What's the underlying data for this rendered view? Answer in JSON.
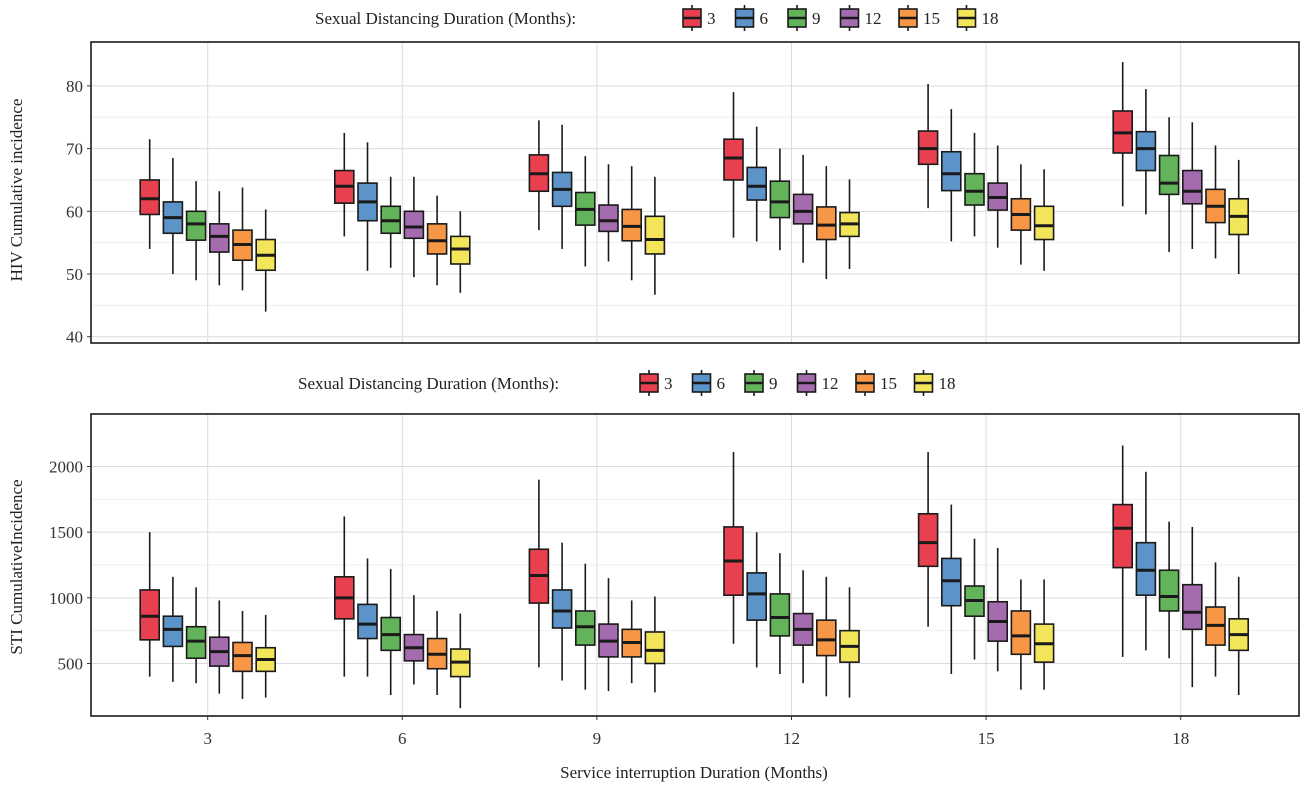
{
  "chart_data": [
    {
      "type": "box",
      "legend": {
        "title": "Sexual Distancing Duration (Months):",
        "placement": "top",
        "entries": [
          "3",
          "6",
          "9",
          "12",
          "15",
          "18"
        ]
      },
      "ylabel": "HIV Cumulative incidence",
      "xlabel": "",
      "ylim": [
        39,
        87
      ],
      "yticks": [
        40,
        50,
        60,
        70,
        80
      ],
      "grid": true,
      "categories": [
        "3",
        "6",
        "9",
        "12",
        "15",
        "18"
      ],
      "series": [
        {
          "name": "3",
          "color": "#e8404f",
          "boxes": [
            [
              54,
              59.5,
              62,
              65,
              71.5
            ],
            [
              56,
              61.3,
              64,
              66.5,
              72.5
            ],
            [
              57,
              63.2,
              66,
              69,
              74.5
            ],
            [
              55.8,
              65,
              68.5,
              71.5,
              79
            ],
            [
              60.5,
              67.5,
              70,
              72.8,
              80.3
            ],
            [
              60.8,
              69.3,
              72.5,
              76,
              83.8
            ]
          ]
        },
        {
          "name": "6",
          "color": "#5c93c9",
          "boxes": [
            [
              50,
              56.5,
              59,
              61.5,
              68.5
            ],
            [
              50.5,
              58.5,
              61.5,
              64.5,
              71
            ],
            [
              54,
              60.8,
              63.5,
              66.2,
              73.8
            ],
            [
              55.2,
              61.8,
              64,
              67,
              73.5
            ],
            [
              55.2,
              63.3,
              66,
              69.5,
              76.3
            ],
            [
              59.5,
              66.5,
              70,
              72.7,
              79.5
            ]
          ]
        },
        {
          "name": "9",
          "color": "#63b35b",
          "boxes": [
            [
              49,
              55.4,
              58,
              60,
              64.8
            ],
            [
              51,
              56.5,
              58.5,
              60.8,
              65.5
            ],
            [
              51.2,
              57.8,
              60.3,
              63,
              68.8
            ],
            [
              53.8,
              59,
              61.5,
              64.8,
              70
            ],
            [
              56,
              61,
              63.2,
              66,
              72.5
            ],
            [
              53.5,
              62.7,
              64.5,
              68.9,
              75
            ]
          ]
        },
        {
          "name": "12",
          "color": "#a46cae",
          "boxes": [
            [
              48.2,
              53.5,
              56,
              58,
              63.2
            ],
            [
              49.5,
              55.7,
              57.5,
              60,
              65.5
            ],
            [
              52,
              56.8,
              58.5,
              61,
              67.5
            ],
            [
              51.8,
              58,
              60,
              62.7,
              69
            ],
            [
              54.2,
              60.2,
              62.2,
              64.5,
              70.5
            ],
            [
              54,
              61.2,
              63.2,
              66.5,
              74.2
            ]
          ]
        },
        {
          "name": "15",
          "color": "#f79645",
          "boxes": [
            [
              47.4,
              52.2,
              54.7,
              57,
              63.8
            ],
            [
              48.2,
              53.2,
              55.3,
              58,
              62.5
            ],
            [
              49,
              55.3,
              57.6,
              60.3,
              67.2
            ],
            [
              49.2,
              55.5,
              57.8,
              60.7,
              67.2
            ],
            [
              51.5,
              57,
              59.5,
              62,
              67.5
            ],
            [
              52.5,
              58.2,
              60.8,
              63.5,
              70.5
            ]
          ]
        },
        {
          "name": "18",
          "color": "#f2e55a",
          "boxes": [
            [
              44,
              50.6,
              53,
              55.5,
              60.3
            ],
            [
              47,
              51.6,
              54,
              56,
              60
            ],
            [
              46.7,
              53.2,
              55.5,
              59.2,
              65.5
            ],
            [
              50.8,
              56,
              58,
              59.8,
              65.1
            ],
            [
              50.5,
              55.5,
              57.7,
              60.8,
              66.7
            ],
            [
              50,
              56.3,
              59.2,
              62,
              68.2
            ]
          ]
        }
      ]
    },
    {
      "type": "box",
      "legend": {
        "title": "Sexual Distancing Duration (Months):",
        "placement": "top",
        "entries": [
          "3",
          "6",
          "9",
          "12",
          "15",
          "18"
        ]
      },
      "ylabel": "STI CumulativeIncidence",
      "xlabel": "Service interruption Duration (Months)",
      "ylim": [
        100,
        2400
      ],
      "yticks": [
        500,
        1000,
        1500,
        2000
      ],
      "grid": true,
      "categories": [
        "3",
        "6",
        "9",
        "12",
        "15",
        "18"
      ],
      "series": [
        {
          "name": "3",
          "color": "#e8404f",
          "boxes": [
            [
              400,
              680,
              860,
              1060,
              1500
            ],
            [
              400,
              840,
              1000,
              1160,
              1620
            ],
            [
              470,
              960,
              1170,
              1370,
              1900
            ],
            [
              650,
              1020,
              1280,
              1540,
              2110
            ],
            [
              780,
              1240,
              1420,
              1640,
              2110
            ],
            [
              550,
              1230,
              1530,
              1710,
              2160
            ]
          ]
        },
        {
          "name": "6",
          "color": "#5c93c9",
          "boxes": [
            [
              360,
              630,
              760,
              860,
              1160
            ],
            [
              400,
              690,
              800,
              950,
              1300
            ],
            [
              370,
              770,
              900,
              1060,
              1420
            ],
            [
              470,
              830,
              1030,
              1190,
              1500
            ],
            [
              420,
              940,
              1130,
              1300,
              1710
            ],
            [
              600,
              1020,
              1210,
              1420,
              1960
            ]
          ]
        },
        {
          "name": "9",
          "color": "#63b35b",
          "boxes": [
            [
              350,
              540,
              670,
              780,
              1080
            ],
            [
              260,
              600,
              720,
              850,
              1220
            ],
            [
              300,
              640,
              780,
              900,
              1260
            ],
            [
              420,
              710,
              850,
              1030,
              1340
            ],
            [
              530,
              860,
              980,
              1090,
              1450
            ],
            [
              540,
              900,
              1010,
              1210,
              1580
            ]
          ]
        },
        {
          "name": "12",
          "color": "#a46cae",
          "boxes": [
            [
              270,
              480,
              590,
              700,
              980
            ],
            [
              340,
              520,
              620,
              720,
              1020
            ],
            [
              290,
              550,
              670,
              800,
              1150
            ],
            [
              350,
              640,
              760,
              880,
              1210
            ],
            [
              440,
              670,
              820,
              970,
              1380
            ],
            [
              320,
              760,
              890,
              1100,
              1540
            ]
          ]
        },
        {
          "name": "15",
          "color": "#f79645",
          "boxes": [
            [
              230,
              440,
              560,
              660,
              900
            ],
            [
              260,
              460,
              570,
              690,
              900
            ],
            [
              350,
              550,
              660,
              760,
              980
            ],
            [
              250,
              560,
              680,
              830,
              1160
            ],
            [
              300,
              570,
              710,
              900,
              1140
            ],
            [
              400,
              640,
              790,
              930,
              1270
            ]
          ]
        },
        {
          "name": "18",
          "color": "#f2e55a",
          "boxes": [
            [
              240,
              440,
              530,
              620,
              870
            ],
            [
              160,
              400,
              510,
              610,
              880
            ],
            [
              280,
              500,
              600,
              740,
              1010
            ],
            [
              240,
              510,
              630,
              750,
              1080
            ],
            [
              300,
              510,
              650,
              800,
              1140
            ],
            [
              260,
              600,
              720,
              840,
              1160
            ]
          ]
        }
      ]
    }
  ]
}
